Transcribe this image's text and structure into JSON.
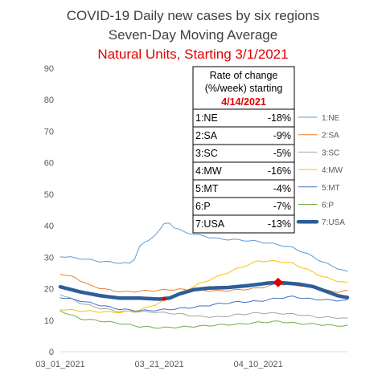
{
  "chart_data": {
    "type": "line",
    "title": "COVID-19 Daily new cases by six regions",
    "subtitle": "Seven-Day Moving Average",
    "subtitle2": "Natural Units, Starting 3/1/2021",
    "ylim": [
      0,
      90
    ],
    "yticks": [
      0,
      10,
      20,
      30,
      40,
      50,
      60,
      70,
      80,
      90
    ],
    "x_start": "2021-03-01",
    "x_ticks": [
      {
        "label": "03_01_2021",
        "day": 0
      },
      {
        "label": "03_21_2021",
        "day": 20
      },
      {
        "label": "04_10_2021",
        "day": 40
      }
    ],
    "n_days": 59,
    "grid": false,
    "legend_position": "right",
    "table": {
      "header_line1": "Rate of change",
      "header_line2": "(%/week) starting",
      "header_date": "4/14/2021",
      "rows": [
        {
          "region": "1:NE",
          "value": "-18%"
        },
        {
          "region": "2:SA",
          "value": "-9%"
        },
        {
          "region": "3:SC",
          "value": "-5%"
        },
        {
          "region": "4:MW",
          "value": "-16%"
        },
        {
          "region": "5:MT",
          "value": "-4%"
        },
        {
          "region": "6:P",
          "value": "-7%"
        },
        {
          "region": "7:USA",
          "value": "-13%"
        }
      ]
    },
    "series": [
      {
        "name": "1:NE",
        "color": "#5b9bd5",
        "width": 1,
        "keys": [
          [
            0,
            30.3
          ],
          [
            4,
            29.6
          ],
          [
            8,
            28.7
          ],
          [
            12,
            28.2
          ],
          [
            14,
            28.0
          ],
          [
            15,
            29.5
          ],
          [
            16,
            33.5
          ],
          [
            18,
            35.5
          ],
          [
            19,
            37
          ],
          [
            20,
            38.5
          ],
          [
            21,
            40.5
          ],
          [
            22,
            41
          ],
          [
            23,
            39.5
          ],
          [
            25,
            38
          ],
          [
            28,
            37
          ],
          [
            32,
            35.8
          ],
          [
            36,
            35.5
          ],
          [
            40,
            35
          ],
          [
            44,
            34
          ],
          [
            47,
            33
          ],
          [
            50,
            31
          ],
          [
            53,
            28.5
          ],
          [
            56,
            26.5
          ],
          [
            58,
            25.3
          ]
        ]
      },
      {
        "name": "2:SA",
        "color": "#ed7d31",
        "width": 1,
        "keys": [
          [
            0,
            24.8
          ],
          [
            3,
            23.5
          ],
          [
            6,
            21
          ],
          [
            10,
            19.5
          ],
          [
            13,
            19.0
          ],
          [
            16,
            19.2
          ],
          [
            20,
            19.5
          ],
          [
            24,
            19.8
          ],
          [
            28,
            19.5
          ],
          [
            32,
            19.3
          ],
          [
            36,
            19.6
          ],
          [
            40,
            20.2
          ],
          [
            44,
            21.5
          ],
          [
            47,
            21.2
          ],
          [
            50,
            20.8
          ],
          [
            53,
            19.5
          ],
          [
            56,
            19.0
          ],
          [
            58,
            19.3
          ]
        ]
      },
      {
        "name": "3:SC",
        "color": "#a5a5a5",
        "width": 1,
        "keys": [
          [
            0,
            18.3
          ],
          [
            4,
            15.5
          ],
          [
            8,
            13.8
          ],
          [
            12,
            12.8
          ],
          [
            16,
            12.7
          ],
          [
            20,
            12.5
          ],
          [
            24,
            12.0
          ],
          [
            28,
            11.2
          ],
          [
            32,
            11.0
          ],
          [
            36,
            11.8
          ],
          [
            40,
            12.3
          ],
          [
            44,
            12.2
          ],
          [
            48,
            11.8
          ],
          [
            52,
            11.0
          ],
          [
            55,
            10.9
          ],
          [
            58,
            10.5
          ]
        ]
      },
      {
        "name": "4:MW",
        "color": "#ffc000",
        "width": 1,
        "keys": [
          [
            0,
            13.5
          ],
          [
            4,
            13.0
          ],
          [
            8,
            12.7
          ],
          [
            12,
            12.5
          ],
          [
            16,
            13.2
          ],
          [
            20,
            15.5
          ],
          [
            24,
            18.5
          ],
          [
            28,
            21.5
          ],
          [
            32,
            24
          ],
          [
            36,
            26.5
          ],
          [
            40,
            28.8
          ],
          [
            44,
            28.7
          ],
          [
            47,
            28.0
          ],
          [
            50,
            26.0
          ],
          [
            53,
            23.8
          ],
          [
            56,
            22.5
          ],
          [
            58,
            21.8
          ]
        ]
      },
      {
        "name": "5:MT",
        "color": "#4472c4",
        "width": 1,
        "keys": [
          [
            0,
            17.3
          ],
          [
            4,
            16.2
          ],
          [
            8,
            14.8
          ],
          [
            12,
            13.5
          ],
          [
            16,
            13.0
          ],
          [
            20,
            13.2
          ],
          [
            24,
            13.7
          ],
          [
            28,
            14.3
          ],
          [
            32,
            15.2
          ],
          [
            36,
            15.8
          ],
          [
            40,
            16.0
          ],
          [
            44,
            17.0
          ],
          [
            47,
            17.5
          ],
          [
            50,
            16.8
          ],
          [
            53,
            16.5
          ],
          [
            56,
            16.3
          ],
          [
            58,
            16.2
          ]
        ]
      },
      {
        "name": "6:P",
        "color": "#70ad47",
        "width": 1,
        "keys": [
          [
            0,
            13.0
          ],
          [
            4,
            10.5
          ],
          [
            8,
            9.8
          ],
          [
            12,
            9.0
          ],
          [
            16,
            8.0
          ],
          [
            20,
            7.6
          ],
          [
            24,
            7.8
          ],
          [
            28,
            8.1
          ],
          [
            32,
            8.5
          ],
          [
            36,
            8.7
          ],
          [
            40,
            9.3
          ],
          [
            44,
            9.6
          ],
          [
            48,
            9.0
          ],
          [
            52,
            8.7
          ],
          [
            55,
            8.3
          ],
          [
            58,
            8.2
          ]
        ]
      },
      {
        "name": "7:USA",
        "color": "#2e5d9b",
        "width": 4.5,
        "keys": [
          [
            0,
            20.6
          ],
          [
            4,
            19.0
          ],
          [
            8,
            17.8
          ],
          [
            12,
            17.0
          ],
          [
            16,
            17.0
          ],
          [
            20,
            16.7
          ],
          [
            22,
            17.0
          ],
          [
            24,
            18.3
          ],
          [
            27,
            19.7
          ],
          [
            30,
            20.2
          ],
          [
            34,
            20.4
          ],
          [
            38,
            21.0
          ],
          [
            42,
            21.8
          ],
          [
            44,
            22.0
          ],
          [
            48,
            21.5
          ],
          [
            51,
            20.7
          ],
          [
            54,
            19.0
          ],
          [
            56,
            17.8
          ],
          [
            58,
            17.2
          ]
        ]
      }
    ],
    "markers": [
      {
        "series": "7:USA",
        "day": 21,
        "value": 16.8,
        "color": "#e00000",
        "shape": "diamond-small"
      },
      {
        "series": "7:USA",
        "day": 44,
        "value": 22.0,
        "color": "#e00000",
        "shape": "diamond"
      }
    ]
  }
}
